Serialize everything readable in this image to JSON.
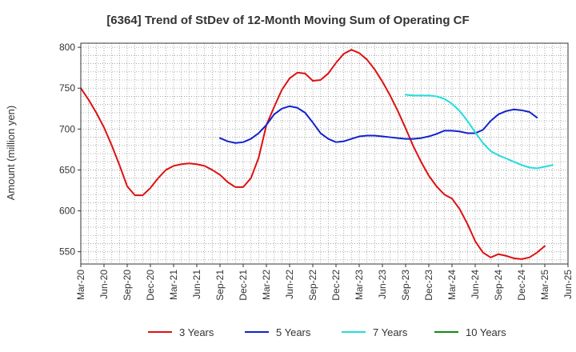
{
  "chart_data": {
    "type": "line",
    "title": "[6364]  Trend of StDev of 12-Month Moving Sum of Operating CF",
    "xlabel": "",
    "ylabel": "Amount (million yen)",
    "ylim": [
      535,
      805
    ],
    "yticks": [
      550,
      600,
      650,
      700,
      750,
      800
    ],
    "xlim_months": [
      0,
      63
    ],
    "xtick_labels": [
      "Mar-20",
      "Jun-20",
      "Sep-20",
      "Dec-20",
      "Mar-21",
      "Jun-21",
      "Sep-21",
      "Dec-21",
      "Mar-22",
      "Jun-22",
      "Sep-22",
      "Dec-22",
      "Mar-23",
      "Jun-23",
      "Sep-23",
      "Dec-23",
      "Mar-24",
      "Jun-24",
      "Sep-24",
      "Dec-24",
      "Mar-25",
      "Jun-25"
    ],
    "grid": true,
    "legend_position": "bottom",
    "series": [
      {
        "name": "3 Years",
        "color": "#dd1111",
        "start_month": 0,
        "values": [
          750,
          736,
          720,
          702,
          680,
          656,
          630,
          619,
          619,
          628,
          640,
          650,
          655,
          657,
          658,
          657,
          655,
          650,
          644,
          635,
          629,
          629,
          640,
          665,
          705,
          727,
          748,
          762,
          769,
          768,
          759,
          760,
          768,
          781,
          792,
          797,
          793,
          785,
          773,
          758,
          741,
          722,
          701,
          679,
          660,
          643,
          630,
          620,
          615,
          602,
          584,
          563,
          549,
          543,
          547,
          545,
          542,
          541,
          543,
          549,
          557
        ]
      },
      {
        "name": "5 Years",
        "color": "#1122cc",
        "start_month": 18,
        "values": [
          689,
          685,
          683,
          684,
          688,
          695,
          705,
          718,
          725,
          728,
          726,
          720,
          708,
          695,
          688,
          684,
          685,
          688,
          691,
          692,
          692,
          691,
          690,
          689,
          688,
          688,
          689,
          691,
          694,
          698,
          698,
          697,
          695,
          695,
          699,
          710,
          718,
          722,
          724,
          723,
          721,
          714
        ]
      },
      {
        "name": "7 Years",
        "color": "#22dddd",
        "start_month": 42,
        "values": [
          742,
          741,
          741,
          741,
          740,
          737,
          731,
          722,
          710,
          696,
          683,
          673,
          668,
          664,
          660,
          656,
          653,
          652,
          654,
          656
        ]
      },
      {
        "name": "10 Years",
        "color": "#118811",
        "start_month": 0,
        "values": []
      }
    ]
  }
}
